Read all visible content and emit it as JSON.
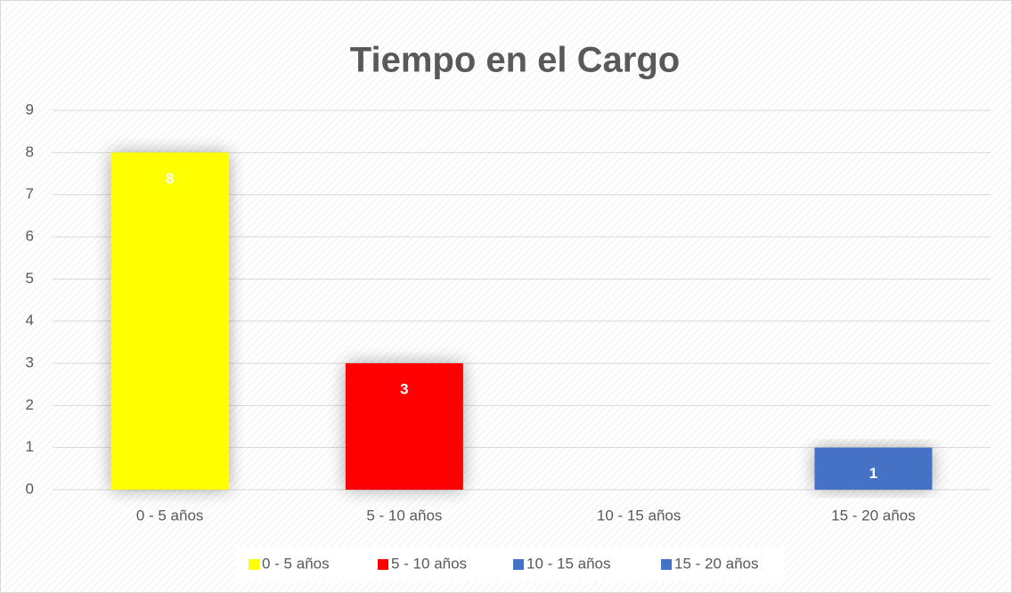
{
  "chart_data": {
    "type": "bar",
    "title": "Tiempo en el Cargo",
    "categories": [
      "0 - 5 años",
      "5 - 10 años",
      "10 - 15 años",
      "15 - 20 años"
    ],
    "values": [
      8,
      3,
      0,
      1
    ],
    "colors": [
      "#ffff00",
      "#ff0000",
      "#4472c4",
      "#4472c4"
    ],
    "ylim": [
      0,
      9
    ],
    "yticks": [
      0,
      1,
      2,
      3,
      4,
      5,
      6,
      7,
      8,
      9
    ],
    "grid": true,
    "legend": "bottom"
  }
}
